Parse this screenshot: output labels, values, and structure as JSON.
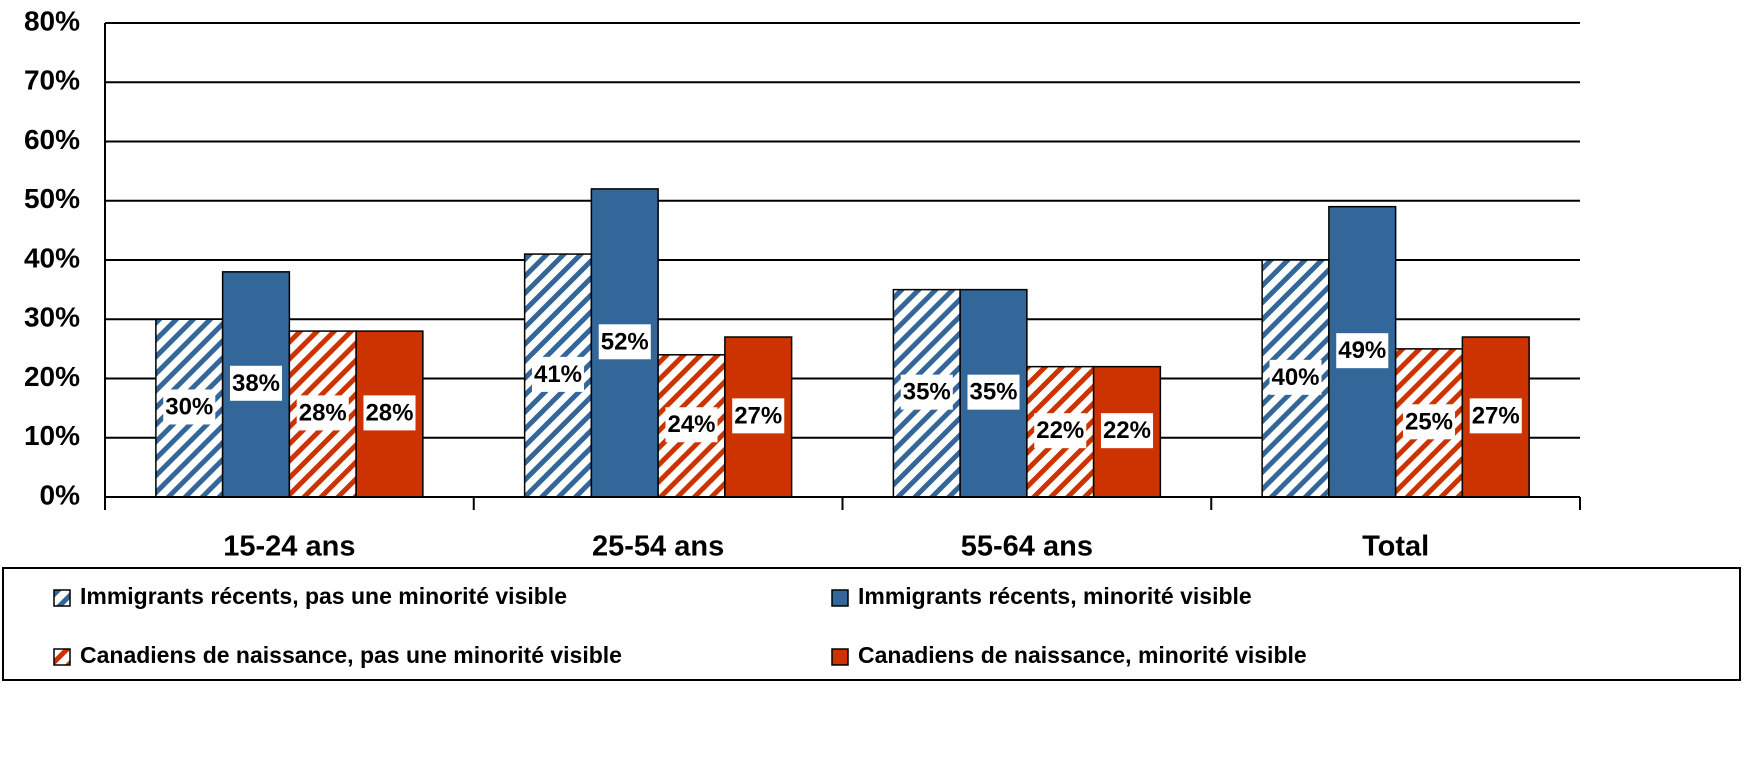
{
  "chart_data": {
    "type": "bar",
    "categories": [
      "15-24 ans",
      "25-54 ans",
      "55-64 ans",
      "Total"
    ],
    "series": [
      {
        "name": "Immigrants récents, pas une minorité visible",
        "color": "#336699",
        "hatch": true,
        "values": [
          30,
          41,
          35,
          40
        ],
        "value_labels": [
          "30%",
          "41%",
          "35%",
          "40%"
        ]
      },
      {
        "name": "Immigrants récents, minorité visible",
        "color": "#336699",
        "hatch": false,
        "values": [
          38,
          52,
          35,
          49
        ],
        "value_labels": [
          "38%",
          "52%",
          "35%",
          "49%"
        ]
      },
      {
        "name": "Canadiens de naissance, pas une minorité visible",
        "color": "#cc3300",
        "hatch": true,
        "values": [
          28,
          24,
          22,
          25
        ],
        "value_labels": [
          "28%",
          "24%",
          "22%",
          "25%"
        ]
      },
      {
        "name": "Canadiens de naissance, minorité visible",
        "color": "#cc3300",
        "hatch": false,
        "values": [
          28,
          27,
          22,
          27
        ],
        "value_labels": [
          "28%",
          "27%",
          "22%",
          "27%"
        ]
      }
    ],
    "ylim": [
      0,
      80
    ],
    "yticks": [
      {
        "value": 0,
        "label": "0%"
      },
      {
        "value": 10,
        "label": "10%"
      },
      {
        "value": 20,
        "label": "20%"
      },
      {
        "value": 30,
        "label": "30%"
      },
      {
        "value": 40,
        "label": "40%"
      },
      {
        "value": 50,
        "label": "50%"
      },
      {
        "value": 60,
        "label": "60%"
      },
      {
        "value": 70,
        "label": "70%"
      },
      {
        "value": 80,
        "label": "80%"
      }
    ],
    "grid": true,
    "legend": "bottom"
  }
}
